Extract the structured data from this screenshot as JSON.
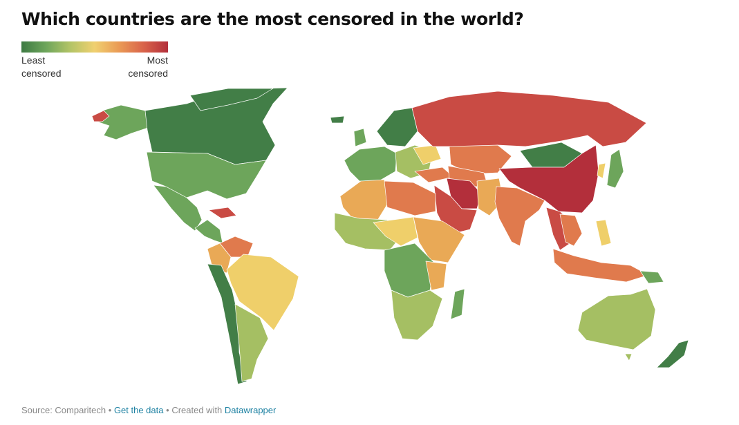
{
  "title": "Which countries are the most censored in the world?",
  "legend": {
    "min_label": [
      "Least",
      "censored"
    ],
    "max_label": [
      "Most",
      "censored"
    ],
    "gradient": [
      "#3d7a43",
      "#6da55b",
      "#b3c466",
      "#f0d070",
      "#ea9a55",
      "#d9634a",
      "#b32f3b"
    ]
  },
  "footer": {
    "source": "Source: Comparitech",
    "separator": "•",
    "get_data": "Get the data",
    "created": "Created with",
    "tool": "Datawrapper"
  },
  "colors": {
    "very_low": "#427e47",
    "low": "#6da55b",
    "low_mid": "#a5bf63",
    "mid": "#efcf6a",
    "mid_high": "#e9a956",
    "high": "#e07a4d",
    "very_high": "#c94b44",
    "extreme": "#b32f3b"
  }
}
